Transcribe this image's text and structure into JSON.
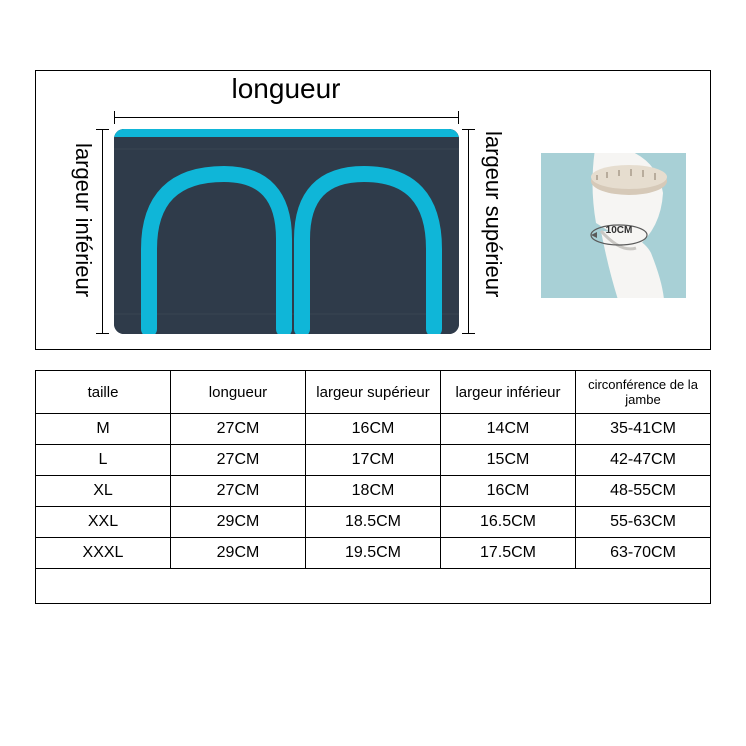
{
  "labels": {
    "length": "longueur",
    "upper_width": "largeur supérieur",
    "lower_width": "largeur inférieur"
  },
  "thumb": {
    "measure_text": "10CM"
  },
  "colors": {
    "sleeve_body": "#2f3b4a",
    "sleeve_stripe": "#0fb6d8",
    "thumb_bg": "#a8d0d6",
    "thumb_leg": "#f6f5f3",
    "thumb_band": "#d6c9b8",
    "border": "#000000",
    "text": "#000000",
    "page_bg": "#ffffff"
  },
  "table": {
    "columns": [
      "taille",
      "longueur",
      "largeur supérieur",
      "largeur inférieur",
      "circonférence de la jambe"
    ],
    "rows": [
      [
        "M",
        "27CM",
        "16CM",
        "14CM",
        "35-41CM"
      ],
      [
        "L",
        "27CM",
        "17CM",
        "15CM",
        "42-47CM"
      ],
      [
        "XL",
        "27CM",
        "18CM",
        "16CM",
        "48-55CM"
      ],
      [
        "XXL",
        "29CM",
        "18.5CM",
        "16.5CM",
        "55-63CM"
      ],
      [
        "XXXL",
        "29CM",
        "19.5CM",
        "17.5CM",
        "63-70CM"
      ]
    ],
    "header_fontsize": 15,
    "cell_fontsize": 16
  }
}
